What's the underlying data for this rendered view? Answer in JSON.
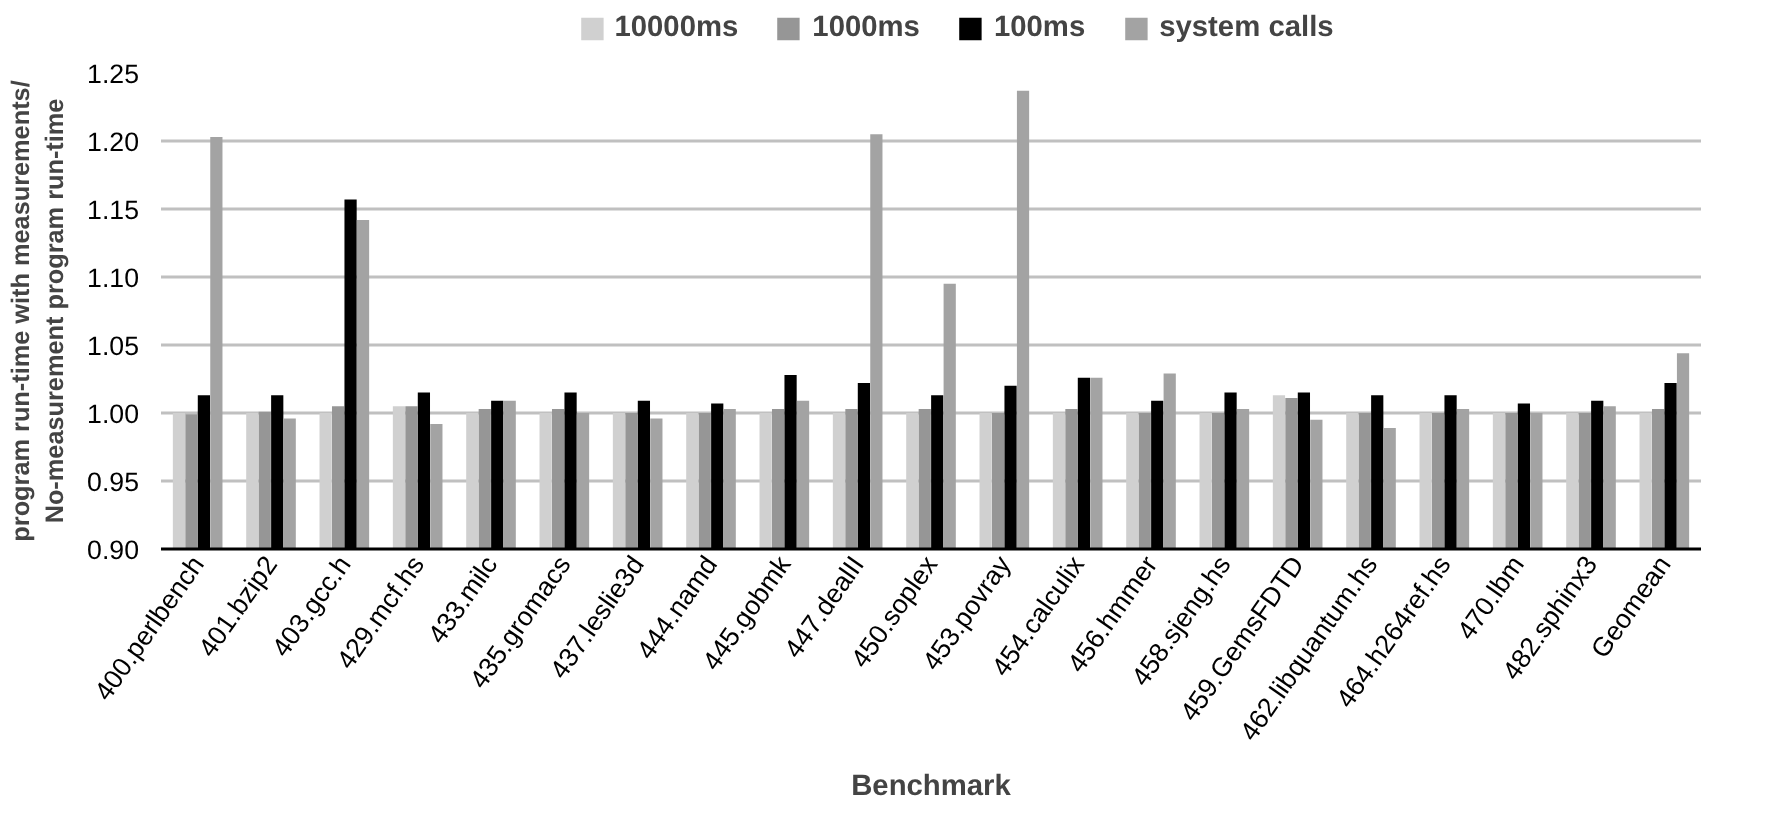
{
  "chart_data": {
    "type": "bar",
    "xlabel": "Benchmark",
    "ylabel": "program run-time with measurements/\nNo-measurement program run-time",
    "categories": [
      "400.perlbench",
      "401.bzip2",
      "403.gcc.h",
      "429.mcf.hs",
      "433.milc",
      "435.gromacs",
      "437.leslie3d",
      "444.namd",
      "445.gobmk",
      "447.dealII",
      "450.soplex",
      "453.povray",
      "454.calculix",
      "456.hmmer",
      "458.sjeng.hs",
      "459.GemsFDTD",
      "462.libquantum.hs",
      "464.h264ref.hs",
      "470.lbm",
      "482.sphinx3",
      "Geomean"
    ],
    "series": [
      {
        "name": "10000ms",
        "color": "#d0d0d0",
        "values": [
          1.0,
          1.0,
          1.0,
          1.005,
          1.0,
          1.0,
          1.0,
          1.0,
          1.0,
          1.0,
          1.0,
          1.0,
          1.0,
          1.0,
          1.0,
          1.013,
          1.0,
          1.0,
          1.0,
          1.0,
          1.0
        ]
      },
      {
        "name": "1000ms",
        "color": "#969696",
        "values": [
          0.999,
          1.001,
          1.005,
          1.005,
          1.003,
          1.003,
          1.0,
          1.0,
          1.003,
          1.003,
          1.003,
          1.0,
          1.003,
          1.0,
          1.0,
          1.011,
          1.0,
          1.0,
          1.0,
          1.0,
          1.003
        ]
      },
      {
        "name": "100ms",
        "color": "#000000",
        "values": [
          1.013,
          1.013,
          1.157,
          1.015,
          1.009,
          1.015,
          1.009,
          1.007,
          1.028,
          1.022,
          1.013,
          1.02,
          1.026,
          1.009,
          1.015,
          1.015,
          1.013,
          1.013,
          1.007,
          1.009,
          1.022
        ]
      },
      {
        "name": "system calls",
        "color": "#a3a3a3",
        "values": [
          1.203,
          0.996,
          1.142,
          0.992,
          1.009,
          1.0,
          0.996,
          1.003,
          1.009,
          1.205,
          1.095,
          1.237,
          1.026,
          1.029,
          1.003,
          0.995,
          0.989,
          1.003,
          1.0,
          1.005,
          1.044
        ]
      }
    ],
    "ylim": [
      0.9,
      1.25
    ],
    "yticks": [
      {
        "value": 0.9,
        "label": "0.90"
      },
      {
        "value": 0.95,
        "label": "0.95"
      },
      {
        "value": 1.0,
        "label": "1.00"
      },
      {
        "value": 1.05,
        "label": "1.05"
      },
      {
        "value": 1.1,
        "label": "1.10"
      },
      {
        "value": 1.15,
        "label": "1.15"
      },
      {
        "value": 1.2,
        "label": "1.20"
      },
      {
        "value": 1.25,
        "label": "1.25"
      }
    ],
    "grid": "y",
    "legend": "top"
  }
}
